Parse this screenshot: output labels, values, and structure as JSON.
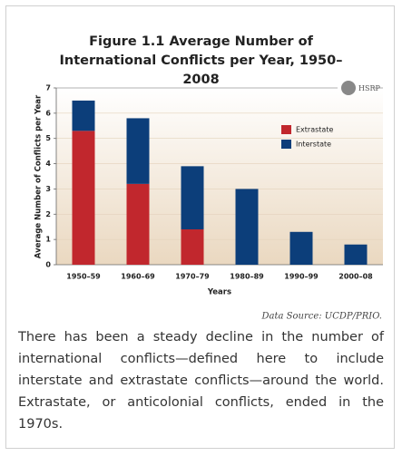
{
  "chart_data": {
    "type": "stacked_bar",
    "title": "Figure 1.1 Average Number of International Conflicts per Year, 1950–2008",
    "ylabel": "Average Number of Conflicts per Year",
    "xlabel": "Years",
    "logo": "HSRP",
    "source": "Data Source: UCDP/PRIO.",
    "caption": "There has been a steady decline in the number of international conflicts—defined here to include interstate and extrastate conflicts—around the world. Extrastate, or anticolonial conflicts, ended in the 1970s.",
    "categories": [
      "1950–59",
      "1960–69",
      "1970–79",
      "1980–89",
      "1990–99",
      "2000–08"
    ],
    "series": [
      {
        "name": "Extrastate",
        "color": "#c1272d",
        "values": [
          5.3,
          3.2,
          1.4,
          0,
          0,
          0
        ]
      },
      {
        "name": "Interstate",
        "color": "#0c3e7a",
        "values": [
          1.2,
          2.6,
          2.5,
          3.0,
          1.3,
          0.8
        ]
      }
    ],
    "ylim": [
      0,
      7
    ],
    "yticks": [
      0,
      1,
      2,
      3,
      4,
      5,
      6,
      7
    ],
    "grid": true,
    "legend": "upper right"
  }
}
